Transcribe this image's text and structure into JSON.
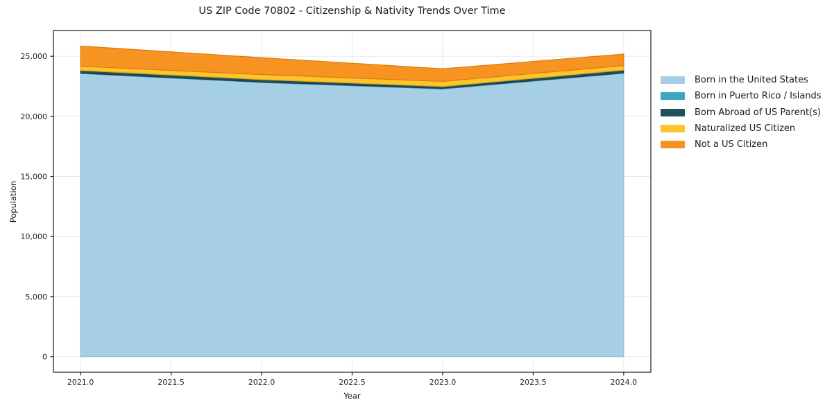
{
  "figure": {
    "background": "#ffffff",
    "spine_color": "#1a1a1a",
    "grid_color": "#e7e7e7"
  },
  "chart_data": {
    "type": "area",
    "stacked": true,
    "title": "US ZIP Code 70802 - Citizenship & Nativity Trends Over Time",
    "xlabel": "Year",
    "ylabel": "Population",
    "x": [
      2021,
      2022,
      2023,
      2024
    ],
    "series": [
      {
        "name": "Born in the United States",
        "color": "#A6CEE4",
        "edge": "#8FBFD9",
        "values": [
          23570,
          22820,
          22280,
          23590
        ]
      },
      {
        "name": "Born in Puerto Rico / Islands",
        "color": "#3DA5C2",
        "edge": "#2F8CA6",
        "values": [
          30,
          40,
          50,
          30
        ]
      },
      {
        "name": "Born Abroad of US Parent(s)",
        "color": "#1F4E5F",
        "edge": "#173B49",
        "values": [
          220,
          200,
          150,
          230
        ]
      },
      {
        "name": "Naturalized US Citizen",
        "color": "#FCC42D",
        "edge": "#DFA413",
        "values": [
          350,
          420,
          430,
          380
        ]
      },
      {
        "name": "Not a US Citizen",
        "color": "#F79421",
        "edge": "#DD7A0E",
        "values": [
          1680,
          1400,
          1050,
          950
        ]
      }
    ],
    "totals": [
      25850,
      24880,
      23960,
      25180
    ],
    "x_ticks": [
      2021.0,
      2021.5,
      2022.0,
      2022.5,
      2023.0,
      2023.5,
      2024.0
    ],
    "x_tick_labels": [
      "2021.0",
      "2021.5",
      "2022.0",
      "2022.5",
      "2023.0",
      "2023.5",
      "2024.0"
    ],
    "y_ticks": [
      0,
      5000,
      10000,
      15000,
      20000,
      25000
    ],
    "y_tick_labels": [
      "0",
      "5,000",
      "10,000",
      "15,000",
      "20,000",
      "25,000"
    ],
    "xlim": [
      2020.85,
      2024.15
    ],
    "ylim": [
      -1293,
      27143
    ],
    "grid": true,
    "legend_position": "right of plot, no frame"
  }
}
